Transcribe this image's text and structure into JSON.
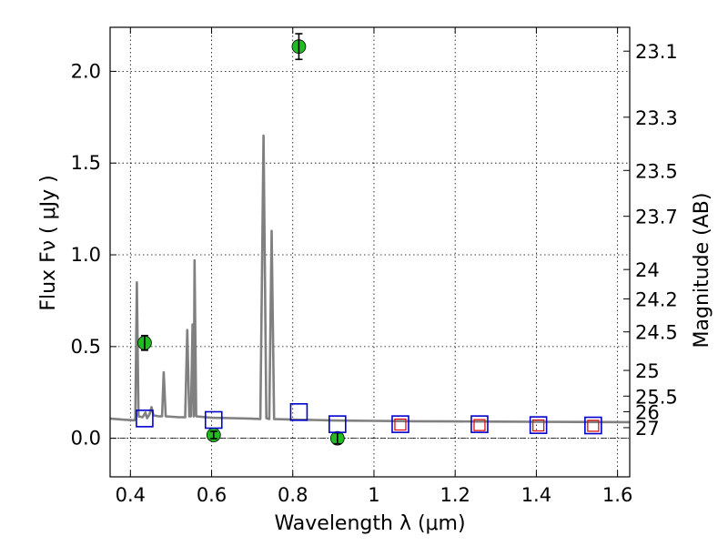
{
  "chart_data": {
    "type": "scatter",
    "xlabel": "Wavelength  λ (μm)",
    "ylabel": "Flux  Fν  ( μJy )",
    "y2label": "Magnitude (AB)",
    "xlim": [
      0.35,
      1.63
    ],
    "ylim": [
      -0.21,
      2.24
    ],
    "grid": true,
    "x_ticks": [
      0.4,
      0.6,
      0.8,
      1.0,
      1.2,
      1.4,
      1.6
    ],
    "x_tick_labels": [
      "0.4",
      "0.6",
      "0.8",
      "1",
      "1.2",
      "1.4",
      "1.6"
    ],
    "y_ticks": [
      0.0,
      0.5,
      1.0,
      1.5,
      2.0
    ],
    "y_tick_labels": [
      "0.0",
      "0.5",
      "1.0",
      "1.5",
      "2.0"
    ],
    "y2_ticks": [
      {
        "label": "23.1",
        "flux": 2.11
      },
      {
        "label": "23.3",
        "flux": 1.75
      },
      {
        "label": "23.5",
        "flux": 1.46
      },
      {
        "label": "23.7",
        "flux": 1.21
      },
      {
        "label": "24",
        "flux": 0.92
      },
      {
        "label": "24.2",
        "flux": 0.76
      },
      {
        "label": "24.5",
        "flux": 0.58
      },
      {
        "label": "25",
        "flux": 0.37
      },
      {
        "label": "25.5",
        "flux": 0.23
      },
      {
        "label": "26",
        "flux": 0.145
      },
      {
        "label": "27",
        "flux": 0.058
      }
    ],
    "model_spectrum": {
      "color": "#808080",
      "points": [
        [
          0.35,
          0.108
        ],
        [
          0.38,
          0.102
        ],
        [
          0.41,
          0.098
        ],
        [
          0.412,
          0.11
        ],
        [
          0.416,
          0.85
        ],
        [
          0.42,
          0.12
        ],
        [
          0.43,
          0.115
        ],
        [
          0.437,
          0.14
        ],
        [
          0.441,
          0.11
        ],
        [
          0.447,
          0.13
        ],
        [
          0.452,
          0.17
        ],
        [
          0.457,
          0.125
        ],
        [
          0.47,
          0.12
        ],
        [
          0.478,
          0.12
        ],
        [
          0.482,
          0.36
        ],
        [
          0.487,
          0.12
        ],
        [
          0.52,
          0.115
        ],
        [
          0.535,
          0.115
        ],
        [
          0.54,
          0.59
        ],
        [
          0.545,
          0.12
        ],
        [
          0.549,
          0.12
        ],
        [
          0.553,
          0.62
        ],
        [
          0.556,
          0.12
        ],
        [
          0.558,
          0.97
        ],
        [
          0.562,
          0.12
        ],
        [
          0.6,
          0.112
        ],
        [
          0.65,
          0.11
        ],
        [
          0.7,
          0.107
        ],
        [
          0.72,
          0.105
        ],
        [
          0.728,
          1.65
        ],
        [
          0.735,
          0.11
        ],
        [
          0.742,
          0.105
        ],
        [
          0.748,
          1.13
        ],
        [
          0.754,
          0.105
        ],
        [
          0.8,
          0.102
        ],
        [
          0.85,
          0.1
        ],
        [
          0.9,
          0.097
        ],
        [
          0.95,
          0.096
        ],
        [
          1.0,
          0.095
        ],
        [
          1.05,
          0.094
        ],
        [
          1.1,
          0.093
        ],
        [
          1.2,
          0.092
        ],
        [
          1.3,
          0.091
        ],
        [
          1.4,
          0.09
        ],
        [
          1.5,
          0.089
        ],
        [
          1.63,
          0.088
        ]
      ]
    },
    "series": [
      {
        "marker": "circle",
        "color": "#22bb22",
        "points": [
          {
            "x": 0.435,
            "y": 0.52,
            "yerr": 0.04
          },
          {
            "x": 0.605,
            "y": 0.018,
            "yerr": 0.02
          },
          {
            "x": 0.815,
            "y": 2.135,
            "yerr": 0.07
          },
          {
            "x": 0.91,
            "y": 0.0,
            "yerr": 0.03
          }
        ]
      },
      {
        "marker": "square-open",
        "color": "#0000cc",
        "points": [
          {
            "x": 0.435,
            "y": 0.108
          },
          {
            "x": 0.605,
            "y": 0.1
          },
          {
            "x": 0.815,
            "y": 0.143
          },
          {
            "x": 0.91,
            "y": 0.077
          },
          {
            "x": 1.065,
            "y": 0.077
          },
          {
            "x": 1.26,
            "y": 0.077
          },
          {
            "x": 1.405,
            "y": 0.072
          },
          {
            "x": 1.54,
            "y": 0.07
          }
        ]
      },
      {
        "marker": "square-open-small",
        "color": "#dd1111",
        "points": [
          {
            "x": 1.065,
            "y": 0.075
          },
          {
            "x": 1.26,
            "y": 0.072
          },
          {
            "x": 1.405,
            "y": 0.07
          },
          {
            "x": 1.54,
            "y": 0.068
          }
        ]
      }
    ]
  }
}
